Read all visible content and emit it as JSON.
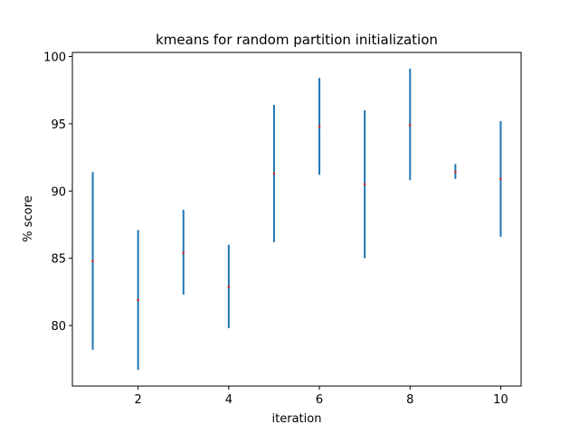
{
  "chart_data": {
    "type": "scatter",
    "title": "kmeans for random partition initialization",
    "xlabel": "iteration",
    "ylabel": "% score",
    "xlim": [
      0.55,
      10.45
    ],
    "ylim": [
      75.5,
      100.3
    ],
    "xticks": [
      2,
      4,
      6,
      8,
      10
    ],
    "yticks": [
      80,
      85,
      90,
      95,
      100
    ],
    "grid": false,
    "error_bar_color": "#1f77b4",
    "point_color": "#d62728",
    "series": [
      {
        "x": [
          1,
          2,
          3,
          4,
          5,
          6,
          7,
          8,
          9,
          10
        ],
        "y": [
          84.8,
          81.9,
          85.4,
          82.9,
          91.3,
          94.8,
          90.5,
          94.9,
          91.4,
          90.9
        ],
        "err_low": [
          78.2,
          76.7,
          82.3,
          79.8,
          86.2,
          91.2,
          85.0,
          90.8,
          90.9,
          86.6
        ],
        "err_high": [
          91.4,
          87.1,
          88.6,
          86.0,
          96.4,
          98.4,
          96.0,
          99.1,
          92.0,
          95.2
        ]
      }
    ]
  }
}
